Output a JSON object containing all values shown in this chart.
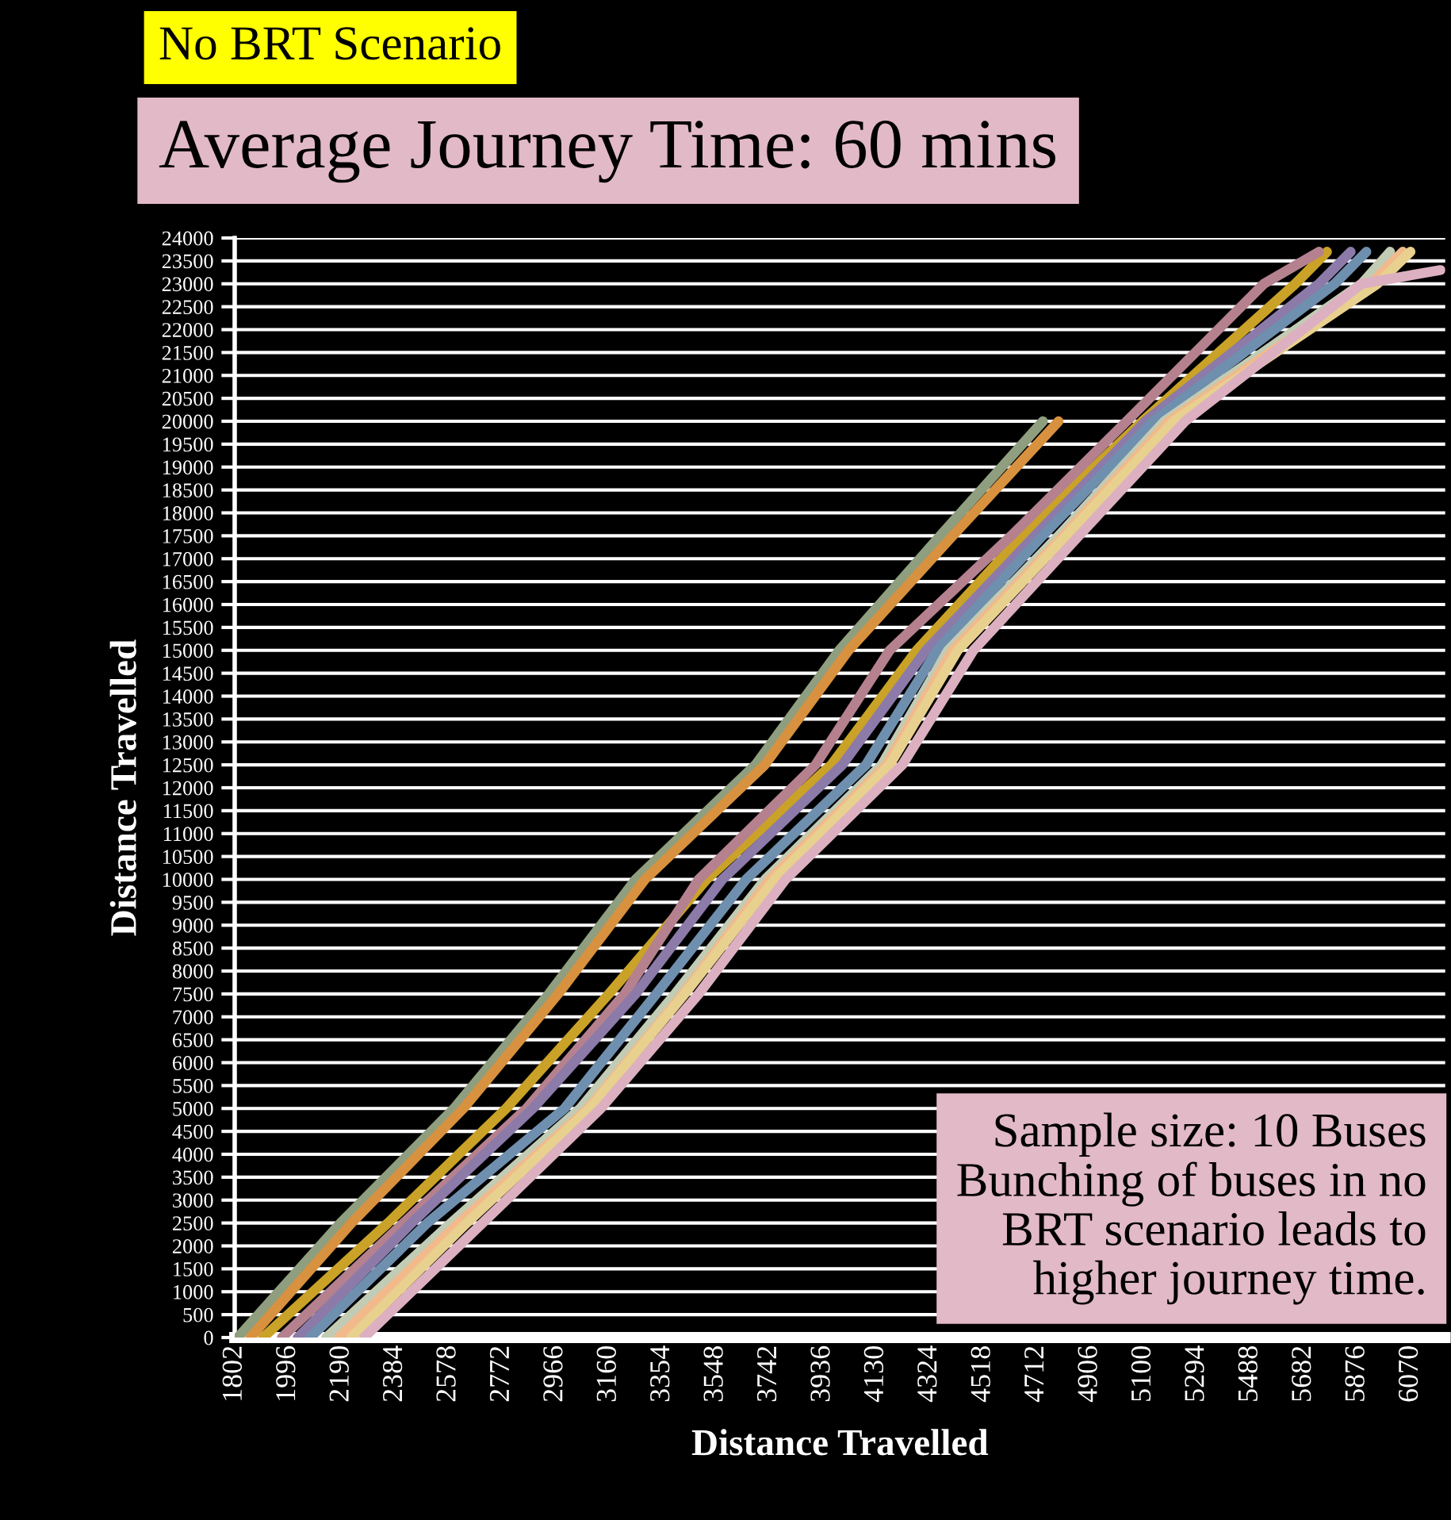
{
  "chart_data": {
    "type": "line",
    "title": "No BRT Scenario",
    "subtitle": "Average Journey Time: 60 mins",
    "xlabel": "Distance Travelled",
    "ylabel": "Distance Travelled",
    "annotations": [
      "Sample size: 10 Buses\nBunching of buses in no\nBRT scenario leads to\nhigher journey time."
    ],
    "xlim": [
      1802,
      6195
    ],
    "ylim": [
      0,
      24000
    ],
    "xticks": [
      1802,
      1996,
      2190,
      2384,
      2578,
      2772,
      2966,
      3160,
      3354,
      3548,
      3742,
      3936,
      4130,
      4324,
      4518,
      4712,
      4906,
      5100,
      5294,
      5488,
      5682,
      5876,
      6070
    ],
    "yticks": [
      0,
      500,
      1000,
      1500,
      2000,
      2500,
      3000,
      3500,
      4000,
      4500,
      5000,
      5500,
      6000,
      6500,
      7000,
      7500,
      8000,
      8500,
      9000,
      9500,
      10000,
      10500,
      11000,
      11500,
      12000,
      12500,
      13000,
      13500,
      14000,
      14500,
      15000,
      15500,
      16000,
      16500,
      17000,
      17500,
      18000,
      18500,
      19000,
      19500,
      20000,
      20500,
      21000,
      21500,
      22000,
      22500,
      23000,
      23500,
      24000
    ],
    "grid": "y",
    "series": [
      {
        "color": "#8f9e7e",
        "x": [
          1813,
          2186,
          2598,
          2942,
          3257,
          3692,
          3996,
          4362,
          4735
        ],
        "values": [
          0,
          2500,
          5000,
          7500,
          10000,
          12500,
          15000,
          17500,
          20000
        ]
      },
      {
        "color": "#d8913e",
        "x": [
          1859,
          2226,
          2632,
          2976,
          3291,
          3726,
          4030,
          4408,
          4792
        ],
        "values": [
          0,
          2500,
          5000,
          7500,
          10000,
          12500,
          15000,
          17500,
          20000
        ]
      },
      {
        "color": "#c9a227",
        "x": [
          1905,
          2358,
          2787,
          3160,
          3515,
          3967,
          4277,
          4660,
          5096,
          5651,
          5766
        ],
        "values": [
          0,
          2500,
          5000,
          7500,
          10000,
          12500,
          15000,
          17500,
          20000,
          23000,
          23700
        ]
      },
      {
        "color": "#b5818f",
        "x": [
          1973,
          2415,
          2861,
          3217,
          3486,
          3910,
          4179,
          4620,
          5039,
          5537,
          5737
        ],
        "values": [
          0,
          2500,
          5000,
          7500,
          10000,
          12500,
          15000,
          17500,
          20000,
          23000,
          23700
        ]
      },
      {
        "color": "#8c7aa9",
        "x": [
          2031,
          2444,
          2884,
          3257,
          3572,
          4007,
          4311,
          4706,
          5107,
          5737,
          5852
        ],
        "values": [
          0,
          2500,
          5000,
          7500,
          10000,
          12500,
          15000,
          17500,
          20000,
          23000,
          23700
        ]
      },
      {
        "color": "#6f8fae",
        "x": [
          2076,
          2501,
          2999,
          3332,
          3658,
          4093,
          4351,
          4734,
          5136,
          5794,
          5909
        ],
        "values": [
          0,
          2500,
          5000,
          7500,
          10000,
          12500,
          15000,
          17500,
          20000,
          23000,
          23700
        ]
      },
      {
        "color": "#c2cbb4",
        "x": [
          2134,
          2587,
          3056,
          3400,
          3727,
          4150,
          4391,
          4792,
          5176,
          5892,
          5995
        ],
        "values": [
          0,
          2500,
          5000,
          7500,
          10000,
          12500,
          15000,
          17500,
          20000,
          23000,
          23700
        ]
      },
      {
        "color": "#f2b98b",
        "x": [
          2180,
          2616,
          3085,
          3429,
          3744,
          4167,
          4408,
          4809,
          5193,
          5926,
          6041
        ],
        "values": [
          0,
          2500,
          5000,
          7500,
          10000,
          12500,
          15000,
          17500,
          20000,
          23000,
          23700
        ]
      },
      {
        "color": "#e8d08e",
        "x": [
          2225,
          2644,
          3091,
          3435,
          3761,
          4179,
          4426,
          4820,
          5210,
          5949,
          6069
        ],
        "values": [
          0,
          2500,
          5000,
          7500,
          10000,
          12500,
          15000,
          17500,
          20000,
          23000,
          23700
        ]
      },
      {
        "color": "#dcb0c0",
        "x": [
          2271,
          2702,
          3131,
          3486,
          3801,
          4225,
          4483,
          4866,
          5251,
          5892,
          6178
        ],
        "values": [
          0,
          2500,
          5000,
          7500,
          10000,
          12500,
          15000,
          17500,
          20000,
          23000,
          23300
        ]
      }
    ]
  }
}
